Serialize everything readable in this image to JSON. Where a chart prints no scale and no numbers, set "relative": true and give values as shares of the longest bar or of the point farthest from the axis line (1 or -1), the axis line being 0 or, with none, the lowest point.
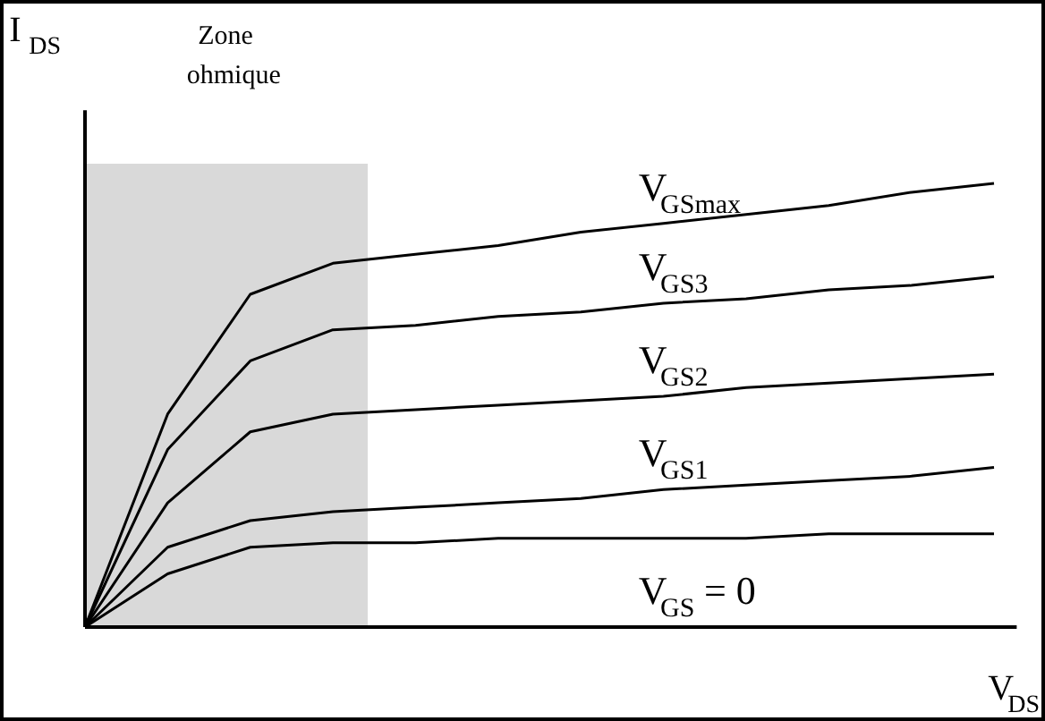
{
  "chart_data": {
    "type": "line",
    "relative": true,
    "xlabel": "V$_{DS}$",
    "ylabel": "I$_{DS}$",
    "categories": [
      null,
      null,
      null,
      null,
      null,
      null,
      null,
      null,
      null,
      null,
      null,
      null
    ],
    "series": [
      {
        "name": "V$_{GSmax}$",
        "color": "#000000",
        "values": [
          0,
          0.48,
          0.75,
          0.82,
          0.84,
          0.86,
          0.89,
          0.91,
          0.93,
          0.95,
          0.98,
          1
        ]
      },
      {
        "name": "V$_{GS3}$",
        "color": "#000000",
        "values": [
          0,
          0.4,
          0.6,
          0.67,
          0.68,
          0.7,
          0.71,
          0.73,
          0.74,
          0.76,
          0.77,
          0.79
        ]
      },
      {
        "name": "V$_{GS2}$",
        "color": "#000000",
        "values": [
          0,
          0.28,
          0.44,
          0.48,
          0.49,
          0.5,
          0.51,
          0.52,
          0.54,
          0.55,
          0.56,
          0.57
        ]
      },
      {
        "name": "V$_{GS1}$",
        "color": "#000000",
        "values": [
          0,
          0.18,
          0.24,
          0.26,
          0.27,
          0.28,
          0.29,
          0.31,
          0.32,
          0.33,
          0.34,
          0.36
        ]
      },
      {
        "color": "#000000",
        "values": [
          0,
          0.12,
          0.18,
          0.19,
          0.19,
          0.2,
          0.2,
          0.2,
          0.2,
          0.21,
          0.21,
          0.21
        ]
      }
    ],
    "annotations": [
      "Zone ohmique",
      "V$_{GS}$ = 0"
    ],
    "marker": "none",
    "line_style": "solid"
  }
}
